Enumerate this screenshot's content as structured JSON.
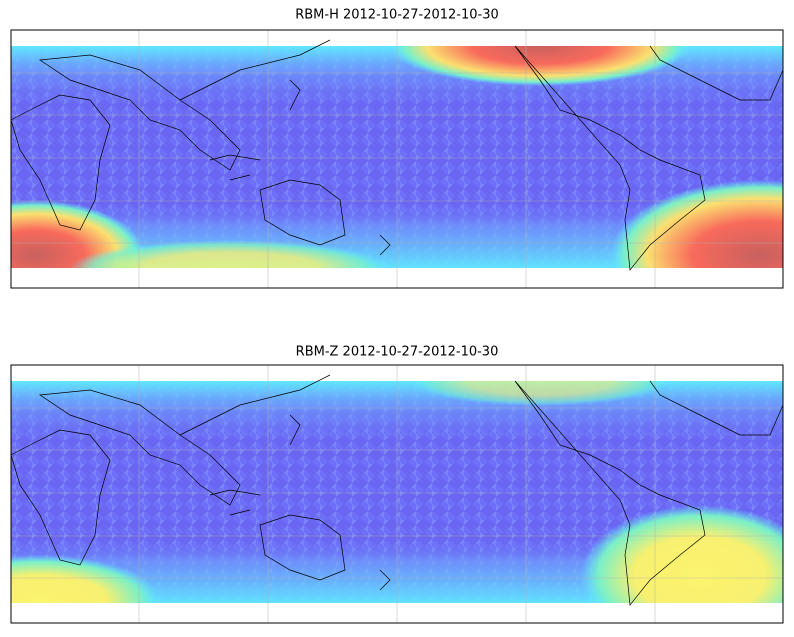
{
  "panels": [
    {
      "title": "RBM-H 2012-10-27-2012-10-30"
    },
    {
      "title": "RBM-Z 2012-10-27-2012-10-30"
    }
  ]
}
